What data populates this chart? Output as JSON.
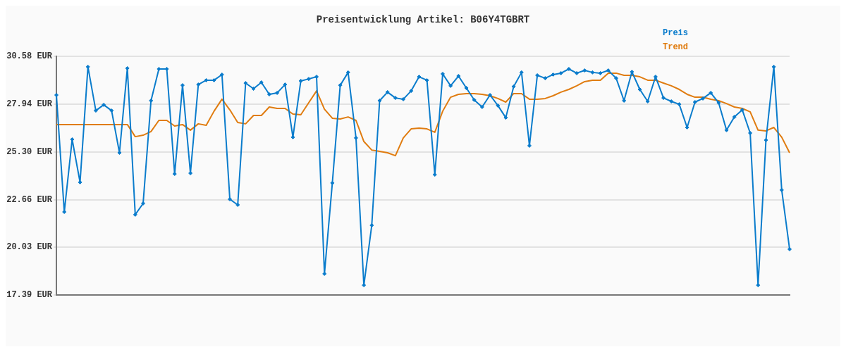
{
  "chart_data": {
    "type": "line",
    "title": "Preisentwicklung Artikel: B06Y4TGBRT",
    "categories": [
      null,
      null,
      null,
      null,
      null,
      null,
      null,
      null,
      null,
      null,
      null,
      null,
      null,
      null,
      null,
      null,
      null,
      null,
      null,
      null,
      null,
      null,
      null,
      null,
      null,
      null,
      null,
      null,
      null,
      null,
      null,
      null,
      null,
      null,
      null,
      null,
      null,
      null,
      null,
      null,
      null,
      null,
      null,
      null,
      null,
      null,
      null,
      null,
      null,
      null,
      null,
      null,
      null,
      null,
      null,
      null,
      null,
      null,
      null,
      null,
      null,
      null,
      null,
      null,
      null,
      null,
      null,
      null,
      null,
      null,
      null,
      null,
      null,
      null,
      null,
      null,
      null,
      null,
      null,
      null,
      null,
      null,
      null,
      null,
      null,
      null,
      null,
      null,
      null,
      null,
      null,
      null,
      null,
      null
    ],
    "series": [
      {
        "name": "Preis",
        "color": "#0a7ccc",
        "marker": "diamond",
        "values": [
          28.44,
          21.98,
          25.99,
          23.62,
          30.0,
          27.58,
          27.9,
          27.58,
          25.25,
          29.92,
          21.83,
          22.45,
          28.13,
          29.88,
          29.88,
          24.08,
          28.98,
          24.12,
          29.02,
          29.26,
          29.26,
          29.57,
          22.68,
          22.37,
          29.1,
          28.79,
          29.14,
          28.48,
          28.56,
          29.02,
          26.11,
          29.22,
          29.33,
          29.45,
          18.56,
          23.58,
          28.98,
          29.69,
          26.07,
          17.93,
          21.24,
          28.13,
          28.6,
          28.28,
          28.21,
          28.67,
          29.45,
          29.26,
          24.04,
          29.61,
          28.95,
          29.49,
          28.83,
          28.17,
          27.78,
          28.44,
          27.86,
          27.19,
          28.91,
          29.69,
          25.64,
          29.53,
          29.37,
          29.57,
          29.65,
          29.88,
          29.65,
          29.8,
          29.69,
          29.65,
          29.8,
          29.37,
          28.13,
          29.72,
          28.75,
          28.09,
          29.45,
          28.28,
          28.09,
          27.93,
          26.65,
          28.05,
          28.25,
          28.56,
          28.01,
          26.5,
          27.23,
          27.62,
          26.34,
          17.93,
          25.95,
          30.0,
          23.19,
          19.92
        ]
      },
      {
        "name": "Trend",
        "color": "#e07c10",
        "marker": "none",
        "values": [
          26.81,
          26.81,
          26.81,
          26.81,
          26.81,
          26.81,
          26.81,
          26.81,
          26.81,
          26.81,
          26.14,
          26.22,
          26.42,
          27.04,
          27.04,
          26.73,
          26.81,
          26.5,
          26.85,
          26.77,
          27.55,
          28.21,
          27.62,
          26.92,
          26.85,
          27.31,
          27.31,
          27.78,
          27.7,
          27.7,
          27.39,
          27.35,
          28.01,
          28.67,
          27.66,
          27.16,
          27.12,
          27.23,
          27.04,
          25.87,
          25.4,
          25.33,
          25.25,
          25.09,
          26.07,
          26.57,
          26.61,
          26.57,
          26.38,
          27.55,
          28.32,
          28.48,
          28.52,
          28.52,
          28.48,
          28.4,
          28.25,
          28.05,
          28.52,
          28.52,
          28.21,
          28.21,
          28.25,
          28.4,
          28.6,
          28.75,
          28.95,
          29.18,
          29.26,
          29.26,
          29.65,
          29.65,
          29.53,
          29.53,
          29.45,
          29.26,
          29.26,
          29.1,
          28.95,
          28.75,
          28.48,
          28.32,
          28.32,
          28.21,
          28.13,
          27.97,
          27.78,
          27.7,
          27.51,
          26.5,
          26.46,
          26.65,
          26.11,
          25.25
        ]
      }
    ],
    "ylim": [
      17.39,
      30.58
    ],
    "yticks": [
      {
        "value": 17.39,
        "label": "17.39 EUR"
      },
      {
        "value": 20.03,
        "label": "20.03 EUR"
      },
      {
        "value": 22.66,
        "label": "22.66 EUR"
      },
      {
        "value": 25.3,
        "label": "25.30 EUR"
      },
      {
        "value": 27.94,
        "label": "27.94 EUR"
      },
      {
        "value": 30.58,
        "label": "30.58 EUR"
      }
    ],
    "grid": "y",
    "legend": "top right",
    "line_style": "solid"
  }
}
